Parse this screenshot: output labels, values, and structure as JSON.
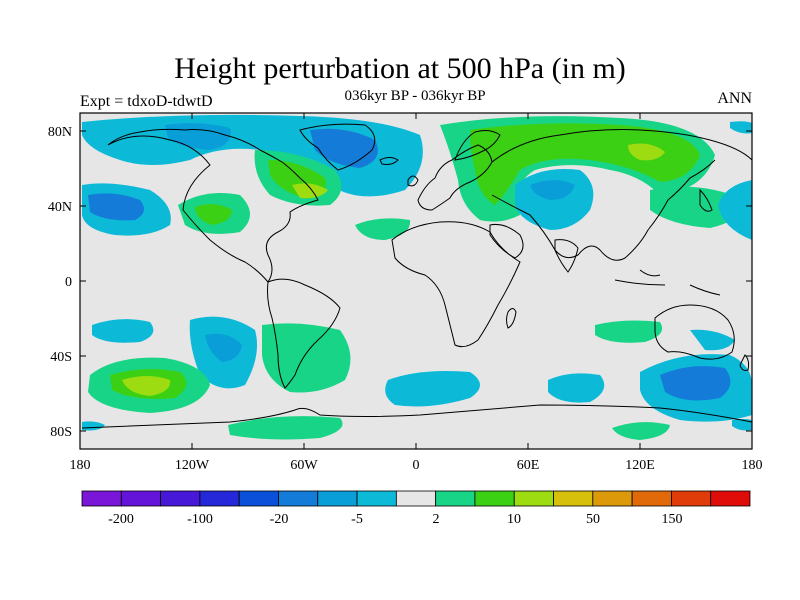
{
  "header": {
    "title": "Height perturbation at 500 hPa (in m)",
    "subtitle_center": "036kyr BP - 036kyr BP",
    "subtitle_left": "Expt = tdxoD-tdwtD",
    "subtitle_right": "ANN"
  },
  "axes": {
    "lat_labels": [
      "80N",
      "40N",
      "0",
      "40S",
      "80S"
    ],
    "lon_labels": [
      "180",
      "120W",
      "60W",
      "0",
      "60E",
      "120E",
      "180"
    ]
  },
  "colorbar": {
    "colors": [
      "#7a16d8",
      "#6414d8",
      "#4818d8",
      "#2428d8",
      "#0a50d8",
      "#147cd8",
      "#0a9ed8",
      "#0cbad8",
      "#e6e6e6",
      "#18d486",
      "#3cd014",
      "#9cdc10",
      "#d6c00c",
      "#dc9a0a",
      "#e06a0a",
      "#e03c0a",
      "#e00c0a"
    ],
    "labels": [
      "-200",
      "-100",
      "-20",
      "-5",
      "2",
      "10",
      "50",
      "150"
    ]
  },
  "regions": {
    "colors": {
      "neg1": "#0cbad8",
      "neg2": "#0a9ed8",
      "neg3": "#147cd8",
      "pos1": "#18d486",
      "pos2": "#3cd014",
      "pos3": "#9cdc10",
      "background": "#e6e6e6"
    }
  }
}
